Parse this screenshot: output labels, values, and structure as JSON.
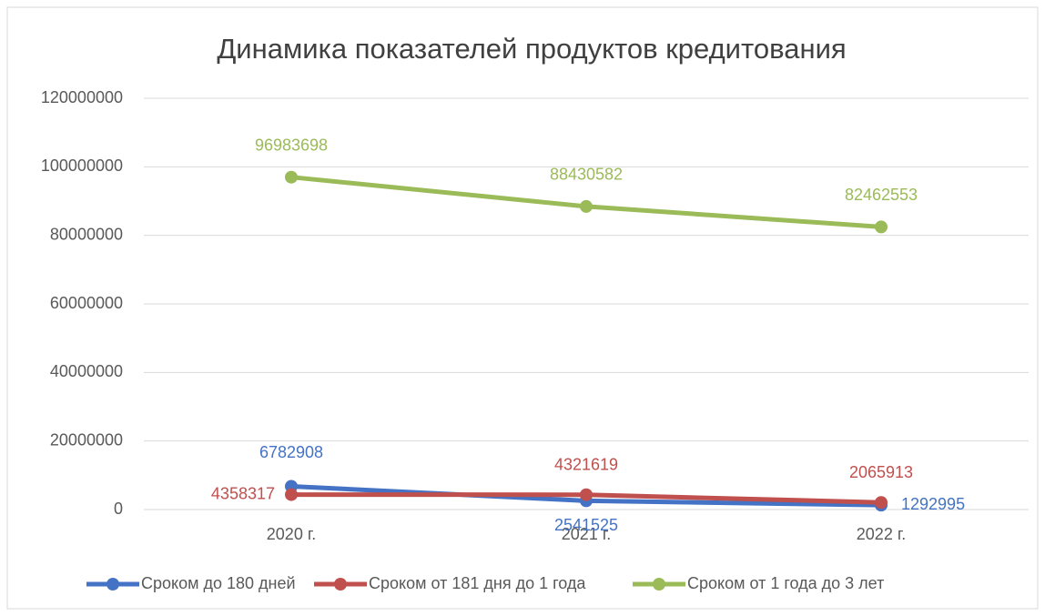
{
  "chart_data": {
    "type": "line",
    "title": "Динамика показателей продуктов кредитования",
    "categories": [
      "2020 г.",
      "2021 г.",
      "2022 г."
    ],
    "series": [
      {
        "name": "Сроком до 180 дней",
        "color": "#4472c4",
        "values": [
          6782908,
          2541525,
          1292995
        ]
      },
      {
        "name": "Сроком от 181 дня до 1 года",
        "color": "#c0504d",
        "values": [
          4358317,
          4321619,
          2065913
        ]
      },
      {
        "name": "Сроком от 1 года до 3 лет",
        "color": "#9bbb59",
        "values": [
          96983698,
          88430582,
          82462553
        ]
      }
    ],
    "ylim": [
      0,
      120000000
    ],
    "yticks": [
      0,
      20000000,
      40000000,
      60000000,
      80000000,
      100000000,
      120000000
    ],
    "grid": true,
    "legend": "bottom"
  }
}
